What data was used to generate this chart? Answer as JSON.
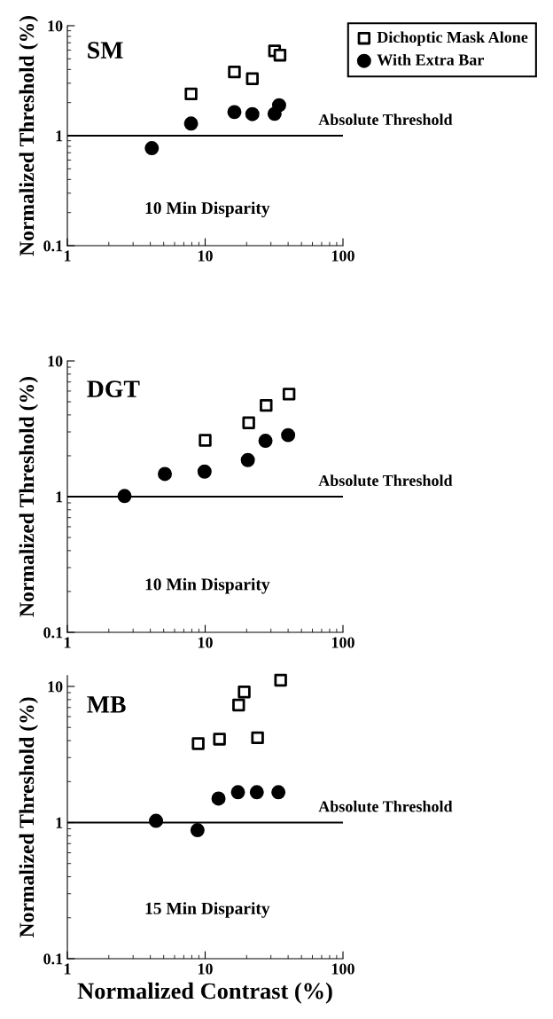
{
  "chart_data": [
    {
      "type": "scatter",
      "ylabel": "Normalized Threshold (%)",
      "log": "xy",
      "xlim": [
        1,
        100
      ],
      "xticks": [
        1,
        10,
        100
      ],
      "ylim": [
        0.1,
        10
      ],
      "yticks": [
        0.1,
        1,
        10
      ],
      "legend": "top right",
      "grid": false,
      "annotations": [
        "SM",
        "10 Min Disparity"
      ],
      "ref_lines": [
        {
          "axis": "y",
          "value": 1,
          "label": "Absolute Threshold",
          "color": "#000000"
        }
      ],
      "series": [
        {
          "name": "Dichoptic Mask Alone",
          "color": "#000000",
          "marker": "square",
          "x": [
            7.9,
            16.3,
            22,
            31.9,
            34.9
          ],
          "values": [
            2.4,
            3.8,
            3.3,
            5.9,
            5.4
          ]
        },
        {
          "name": "With Extra Bar",
          "color": "#000000",
          "marker": "circle",
          "x": [
            4.1,
            7.9,
            16.3,
            22,
            31.9,
            34.4
          ],
          "values": [
            0.77,
            1.29,
            1.64,
            1.57,
            1.58,
            1.89
          ]
        }
      ]
    },
    {
      "type": "scatter",
      "ylabel": "Normalized Threshold (%)",
      "log": "xy",
      "xlim": [
        1,
        100
      ],
      "xticks": [
        1,
        10,
        100
      ],
      "ylim": [
        0.1,
        10
      ],
      "yticks": [
        0.1,
        1,
        10
      ],
      "grid": false,
      "annotations": [
        "DGT",
        "10 Min Disparity"
      ],
      "ref_lines": [
        {
          "axis": "y",
          "value": 1,
          "label": "Absolute Threshold",
          "color": "#000000"
        }
      ],
      "series": [
        {
          "color": "#000000",
          "marker": "square",
          "x": [
            10,
            20.7,
            27.7,
            40.6
          ],
          "values": [
            2.6,
            3.5,
            4.7,
            5.7
          ]
        },
        {
          "color": "#000000",
          "marker": "circle",
          "x": [
            2.6,
            5.1,
            9.9,
            20.4,
            27.4,
            40.0
          ],
          "values": [
            1.01,
            1.47,
            1.53,
            1.86,
            2.58,
            2.84
          ]
        }
      ]
    },
    {
      "type": "scatter",
      "xlabel": "Normalized Contrast (%)",
      "ylabel": "Normalized Threshold (%)",
      "log": "xy",
      "xlim": [
        1,
        100
      ],
      "xticks": [
        1,
        10,
        100
      ],
      "ylim": [
        0.1,
        12
      ],
      "yticks": [
        0.1,
        1,
        10
      ],
      "grid": false,
      "annotations": [
        "MB",
        "15 Min Disparity"
      ],
      "ref_lines": [
        {
          "axis": "y",
          "value": 1,
          "label": "Absolute Threshold",
          "color": "#000000"
        }
      ],
      "series": [
        {
          "color": "#000000",
          "marker": "square",
          "x": [
            8.9,
            12.7,
            17.5,
            19.2,
            24,
            35.3
          ],
          "values": [
            3.8,
            4.1,
            7.3,
            9.1,
            4.2,
            11.1
          ]
        },
        {
          "color": "#000000",
          "marker": "circle",
          "x": [
            4.4,
            8.8,
            12.5,
            17.3,
            23.7,
            34.0
          ],
          "values": [
            1.03,
            0.88,
            1.5,
            1.67,
            1.67,
            1.67
          ]
        }
      ]
    }
  ]
}
